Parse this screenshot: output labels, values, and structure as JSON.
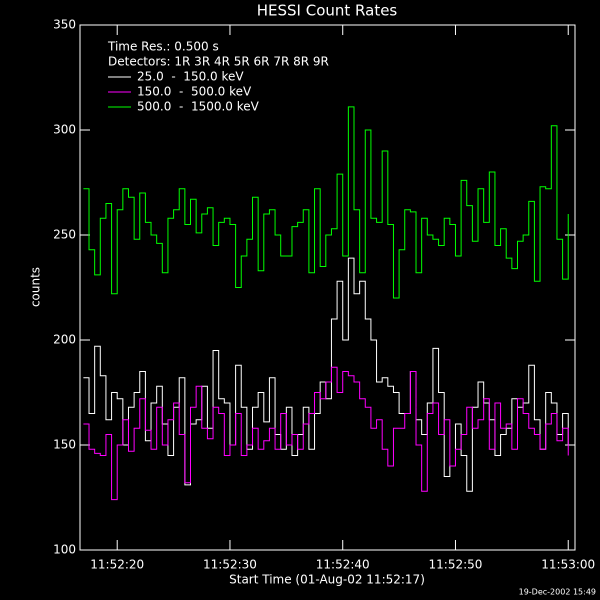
{
  "chart_data": {
    "type": "line",
    "step": true,
    "title": "HESSI Count Rates",
    "ylabel": "counts",
    "xlabel": "Start Time (01-Aug-02 11:52:17)",
    "footer": "19-Dec-2002 15:49",
    "legend_header": [
      "Time Res.: 0.500 s",
      "Detectors: 1R 3R 4R 5R 6R 7R 8R 9R"
    ],
    "legend": "upper left",
    "x": [
      17,
      17.5,
      18,
      18.5,
      19,
      19.5,
      20,
      20.5,
      21,
      21.5,
      22,
      22.5,
      23,
      23.5,
      24,
      24.5,
      25,
      25.5,
      26,
      26.5,
      27,
      27.5,
      28,
      28.5,
      29,
      29.5,
      30,
      30.5,
      31,
      31.5,
      32,
      32.5,
      33,
      33.5,
      34,
      34.5,
      35,
      35.5,
      36,
      36.5,
      37,
      37.5,
      38,
      38.5,
      39,
      39.5,
      40,
      40.5,
      41,
      41.5,
      42,
      42.5,
      43,
      43.5,
      44,
      44.5,
      45,
      45.5,
      46,
      46.5,
      47,
      47.5,
      48,
      48.5,
      49,
      49.5,
      50,
      50.5,
      51,
      51.5,
      52,
      52.5,
      53,
      53.5,
      54,
      54.5,
      55,
      55.5,
      56,
      56.5,
      57,
      57.5,
      58,
      58.5,
      59,
      59.5,
      60
    ],
    "series": [
      {
        "name": "25.0  -  150.0 keV",
        "color": "#ffffff",
        "values": [
          182,
          165,
          197,
          183,
          162,
          175,
          172,
          150,
          168,
          175,
          185,
          152,
          170,
          178,
          160,
          145,
          168,
          182,
          131,
          160,
          162,
          178,
          158,
          195,
          172,
          170,
          150,
          188,
          168,
          148,
          168,
          175,
          161,
          182,
          155,
          148,
          168,
          145,
          155,
          168,
          148,
          165,
          180,
          172,
          210,
          228,
          200,
          239,
          222,
          228,
          210,
          200,
          180,
          182,
          178,
          175,
          165,
          165,
          185,
          162,
          155,
          170,
          196,
          175,
          135,
          140,
          160,
          145,
          128,
          168,
          180,
          170,
          162,
          145,
          155,
          158,
          172,
          168,
          170,
          188,
          162,
          148,
          175,
          170,
          155,
          165,
          150
        ]
      },
      {
        "name": "150.0  -  500.0 keV",
        "color": "#ff00ff",
        "values": [
          160,
          148,
          146,
          145,
          155,
          124,
          150,
          162,
          147,
          158,
          172,
          157,
          148,
          168,
          150,
          162,
          170,
          155,
          132,
          168,
          178,
          158,
          153,
          168,
          165,
          145,
          150,
          165,
          145,
          150,
          158,
          148,
          152,
          158,
          148,
          165,
          150,
          155,
          148,
          160,
          165,
          175,
          172,
          180,
          187,
          175,
          185,
          183,
          180,
          172,
          168,
          158,
          162,
          148,
          140,
          158,
          158,
          165,
          185,
          150,
          128,
          165,
          170,
          155,
          162,
          140,
          148,
          155,
          168,
          158,
          162,
          172,
          148,
          170,
          158,
          160,
          148,
          172,
          165,
          158,
          155,
          148,
          160,
          165,
          152,
          158,
          145
        ]
      },
      {
        "name": "500.0  -  1500.0 keV",
        "color": "#00ff00",
        "values": [
          272,
          243,
          231,
          258,
          265,
          222,
          262,
          272,
          268,
          248,
          270,
          256,
          250,
          246,
          232,
          258,
          262,
          272,
          255,
          267,
          251,
          260,
          263,
          245,
          256,
          258,
          255,
          225,
          240,
          248,
          268,
          233,
          260,
          262,
          250,
          240,
          240,
          254,
          256,
          262,
          232,
          272,
          235,
          250,
          253,
          279,
          240,
          311,
          262,
          232,
          300,
          258,
          256,
          290,
          255,
          220,
          243,
          262,
          261,
          232,
          258,
          250,
          248,
          245,
          258,
          255,
          240,
          276,
          264,
          247,
          272,
          256,
          280,
          245,
          253,
          239,
          234,
          247,
          250,
          266,
          228,
          273,
          272,
          302,
          248,
          229,
          260
        ]
      }
    ],
    "xlim": [
      16.7,
      60.6
    ],
    "xticks": [
      {
        "value": 20,
        "label": "11:52:20"
      },
      {
        "value": 30,
        "label": "11:52:30"
      },
      {
        "value": 40,
        "label": "11:52:40"
      },
      {
        "value": 50,
        "label": "11:52:50"
      },
      {
        "value": 60,
        "label": "11:53:00"
      }
    ],
    "ylim": [
      100,
      350
    ],
    "yticks": [
      100,
      150,
      200,
      250,
      300,
      350
    ]
  }
}
